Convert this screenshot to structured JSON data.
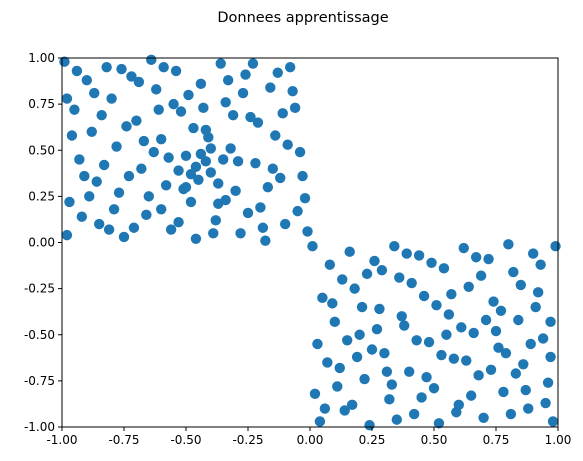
{
  "chart_data": {
    "type": "scatter",
    "title": "Donnees apprentissage",
    "xlabel": "",
    "ylabel": "",
    "xlim": [
      -1.0,
      1.0
    ],
    "ylim": [
      -1.0,
      1.0
    ],
    "xticks": [
      "-1.00",
      "-0.75",
      "-0.50",
      "-0.25",
      "0.00",
      "0.25",
      "0.50",
      "0.75",
      "1.00"
    ],
    "yticks": [
      "-1.00",
      "-0.75",
      "-0.50",
      "-0.25",
      "0.00",
      "0.25",
      "0.50",
      "0.75",
      "1.00"
    ],
    "grid": false,
    "legend": "none",
    "color": "#1f77b4",
    "series": [
      {
        "points": [
          [
            -0.99,
            0.98
          ],
          [
            -0.95,
            0.72
          ],
          [
            -0.93,
            0.45
          ],
          [
            -0.97,
            0.22
          ],
          [
            -0.98,
            0.04
          ],
          [
            -0.9,
            0.88
          ],
          [
            -0.88,
            0.6
          ],
          [
            -0.86,
            0.33
          ],
          [
            -0.85,
            0.1
          ],
          [
            -0.82,
            0.95
          ],
          [
            -0.8,
            0.78
          ],
          [
            -0.78,
            0.52
          ],
          [
            -0.77,
            0.27
          ],
          [
            -0.75,
            0.03
          ],
          [
            -0.72,
            0.9
          ],
          [
            -0.7,
            0.66
          ],
          [
            -0.68,
            0.4
          ],
          [
            -0.66,
            0.15
          ],
          [
            -0.64,
            0.99
          ],
          [
            -0.62,
            0.83
          ],
          [
            -0.6,
            0.56
          ],
          [
            -0.58,
            0.31
          ],
          [
            -0.56,
            0.07
          ],
          [
            -0.54,
            0.93
          ],
          [
            -0.52,
            0.71
          ],
          [
            -0.5,
            0.47
          ],
          [
            -0.48,
            0.22
          ],
          [
            -0.46,
            0.02
          ],
          [
            -0.44,
            0.86
          ],
          [
            -0.42,
            0.61
          ],
          [
            -0.4,
            0.38
          ],
          [
            -0.38,
            0.12
          ],
          [
            -0.36,
            0.97
          ],
          [
            -0.34,
            0.76
          ],
          [
            -0.32,
            0.51
          ],
          [
            -0.3,
            0.28
          ],
          [
            -0.28,
            0.05
          ],
          [
            -0.26,
            0.91
          ],
          [
            -0.24,
            0.68
          ],
          [
            -0.22,
            0.43
          ],
          [
            -0.2,
            0.19
          ],
          [
            -0.18,
            0.01
          ],
          [
            -0.16,
            0.84
          ],
          [
            -0.14,
            0.58
          ],
          [
            -0.12,
            0.35
          ],
          [
            -0.1,
            0.1
          ],
          [
            -0.08,
            0.95
          ],
          [
            -0.06,
            0.73
          ],
          [
            -0.04,
            0.49
          ],
          [
            -0.02,
            0.24
          ],
          [
            -0.01,
            0.06
          ],
          [
            -0.92,
            0.14
          ],
          [
            -0.87,
            0.81
          ],
          [
            -0.83,
            0.42
          ],
          [
            -0.79,
            0.18
          ],
          [
            -0.74,
            0.63
          ],
          [
            -0.69,
            0.87
          ],
          [
            -0.65,
            0.25
          ],
          [
            -0.61,
            0.72
          ],
          [
            -0.57,
            0.46
          ],
          [
            -0.53,
            0.11
          ],
          [
            -0.49,
            0.8
          ],
          [
            -0.45,
            0.34
          ],
          [
            -0.41,
            0.57
          ],
          [
            -0.37,
            0.21
          ],
          [
            -0.33,
            0.88
          ],
          [
            -0.29,
            0.44
          ],
          [
            -0.25,
            0.16
          ],
          [
            -0.21,
            0.65
          ],
          [
            -0.17,
            0.3
          ],
          [
            -0.13,
            0.92
          ],
          [
            -0.09,
            0.53
          ],
          [
            -0.05,
            0.17
          ],
          [
            -0.96,
            0.58
          ],
          [
            -0.91,
            0.36
          ],
          [
            -0.84,
            0.69
          ],
          [
            -0.76,
            0.94
          ],
          [
            -0.71,
            0.08
          ],
          [
            -0.63,
            0.49
          ],
          [
            -0.55,
            0.75
          ],
          [
            -0.47,
            0.62
          ],
          [
            -0.39,
            0.05
          ],
          [
            -0.31,
            0.69
          ],
          [
            -0.23,
            0.97
          ],
          [
            -0.15,
            0.4
          ],
          [
            -0.07,
            0.82
          ],
          [
            -0.03,
            0.36
          ],
          [
            -0.94,
            0.93
          ],
          [
            -0.81,
            0.07
          ],
          [
            -0.67,
            0.55
          ],
          [
            -0.59,
            0.95
          ],
          [
            -0.51,
            0.29
          ],
          [
            -0.43,
            0.73
          ],
          [
            -0.35,
            0.45
          ],
          [
            -0.27,
            0.81
          ],
          [
            -0.19,
            0.08
          ],
          [
            -0.11,
            0.7
          ],
          [
            -0.98,
            0.78
          ],
          [
            -0.89,
            0.25
          ],
          [
            -0.73,
            0.36
          ],
          [
            -0.46,
            0.41
          ],
          [
            -0.44,
            0.48
          ],
          [
            -0.42,
            0.44
          ],
          [
            -0.48,
            0.37
          ],
          [
            -0.4,
            0.51
          ],
          [
            -0.5,
            0.3
          ],
          [
            -0.53,
            0.39
          ],
          [
            -0.37,
            0.32
          ],
          [
            -0.6,
            0.18
          ],
          [
            -0.34,
            0.23
          ],
          [
            0.01,
            -0.02
          ],
          [
            0.05,
            -0.3
          ],
          [
            0.03,
            -0.55
          ],
          [
            0.02,
            -0.82
          ],
          [
            0.04,
            -0.97
          ],
          [
            0.08,
            -0.12
          ],
          [
            0.1,
            -0.43
          ],
          [
            0.12,
            -0.68
          ],
          [
            0.14,
            -0.91
          ],
          [
            0.16,
            -0.05
          ],
          [
            0.18,
            -0.25
          ],
          [
            0.2,
            -0.5
          ],
          [
            0.22,
            -0.74
          ],
          [
            0.24,
            -0.99
          ],
          [
            0.26,
            -0.1
          ],
          [
            0.28,
            -0.36
          ],
          [
            0.3,
            -0.6
          ],
          [
            0.32,
            -0.85
          ],
          [
            0.34,
            -0.02
          ],
          [
            0.36,
            -0.19
          ],
          [
            0.38,
            -0.45
          ],
          [
            0.4,
            -0.7
          ],
          [
            0.42,
            -0.93
          ],
          [
            0.44,
            -0.07
          ],
          [
            0.46,
            -0.29
          ],
          [
            0.48,
            -0.54
          ],
          [
            0.5,
            -0.79
          ],
          [
            0.52,
            -0.98
          ],
          [
            0.54,
            -0.14
          ],
          [
            0.56,
            -0.39
          ],
          [
            0.58,
            -0.63
          ],
          [
            0.6,
            -0.88
          ],
          [
            0.62,
            -0.03
          ],
          [
            0.64,
            -0.24
          ],
          [
            0.66,
            -0.49
          ],
          [
            0.68,
            -0.72
          ],
          [
            0.7,
            -0.95
          ],
          [
            0.72,
            -0.09
          ],
          [
            0.74,
            -0.32
          ],
          [
            0.76,
            -0.57
          ],
          [
            0.78,
            -0.81
          ],
          [
            0.8,
            -0.01
          ],
          [
            0.82,
            -0.16
          ],
          [
            0.84,
            -0.42
          ],
          [
            0.86,
            -0.66
          ],
          [
            0.88,
            -0.9
          ],
          [
            0.9,
            -0.06
          ],
          [
            0.92,
            -0.27
          ],
          [
            0.94,
            -0.52
          ],
          [
            0.96,
            -0.76
          ],
          [
            0.98,
            -0.97
          ],
          [
            0.99,
            -0.02
          ],
          [
            0.07,
            -0.65
          ],
          [
            0.13,
            -0.2
          ],
          [
            0.17,
            -0.88
          ],
          [
            0.21,
            -0.35
          ],
          [
            0.25,
            -0.58
          ],
          [
            0.29,
            -0.15
          ],
          [
            0.33,
            -0.77
          ],
          [
            0.37,
            -0.4
          ],
          [
            0.41,
            -0.22
          ],
          [
            0.45,
            -0.84
          ],
          [
            0.49,
            -0.11
          ],
          [
            0.53,
            -0.61
          ],
          [
            0.57,
            -0.28
          ],
          [
            0.61,
            -0.46
          ],
          [
            0.65,
            -0.83
          ],
          [
            0.69,
            -0.18
          ],
          [
            0.73,
            -0.69
          ],
          [
            0.77,
            -0.37
          ],
          [
            0.81,
            -0.93
          ],
          [
            0.85,
            -0.23
          ],
          [
            0.89,
            -0.55
          ],
          [
            0.93,
            -0.12
          ],
          [
            0.97,
            -0.43
          ],
          [
            0.06,
            -0.9
          ],
          [
            0.11,
            -0.78
          ],
          [
            0.19,
            -0.62
          ],
          [
            0.27,
            -0.47
          ],
          [
            0.35,
            -0.96
          ],
          [
            0.43,
            -0.53
          ],
          [
            0.51,
            -0.34
          ],
          [
            0.59,
            -0.92
          ],
          [
            0.67,
            -0.08
          ],
          [
            0.75,
            -0.48
          ],
          [
            0.83,
            -0.71
          ],
          [
            0.91,
            -0.35
          ],
          [
            0.95,
            -0.87
          ],
          [
            0.09,
            -0.33
          ],
          [
            0.15,
            -0.53
          ],
          [
            0.23,
            -0.17
          ],
          [
            0.31,
            -0.7
          ],
          [
            0.39,
            -0.06
          ],
          [
            0.47,
            -0.73
          ],
          [
            0.55,
            -0.5
          ],
          [
            0.63,
            -0.64
          ],
          [
            0.71,
            -0.42
          ],
          [
            0.79,
            -0.6
          ],
          [
            0.87,
            -0.8
          ],
          [
            0.97,
            -0.62
          ]
        ]
      }
    ]
  }
}
